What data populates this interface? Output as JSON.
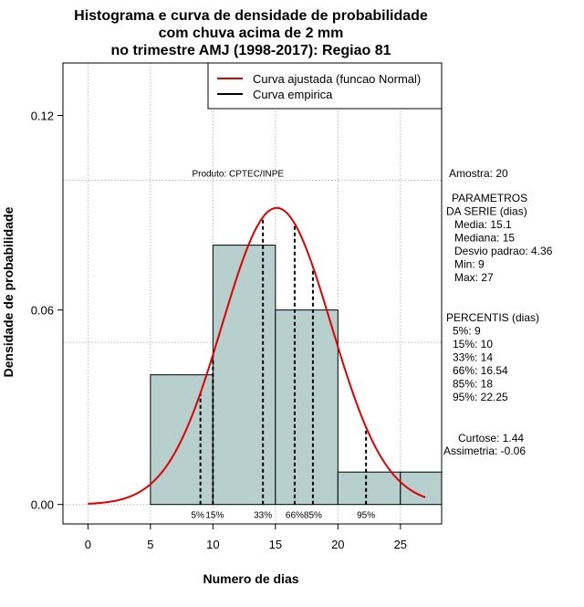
{
  "chart_data": {
    "type": "histogram",
    "title_lines": [
      "Histograma e curva de densidade de probabilidade",
      "com chuva acima de 2 mm",
      "no trimestre AMJ (1998-2017): Regiao 81"
    ],
    "xlabel": "Numero de dias",
    "ylabel": "Densidade de probabilidade",
    "xlim": [
      -2,
      28.3
    ],
    "ylim": [
      -0.006,
      0.1362
    ],
    "x_ticks": [
      "0",
      "5",
      "10",
      "15",
      "20",
      "25"
    ],
    "y_ticks": [
      "0.00",
      "0.06",
      "0.12"
    ],
    "x_tick_values": [
      0,
      5,
      10,
      15,
      20,
      25
    ],
    "y_tick_values": [
      0.0,
      0.06,
      0.12
    ],
    "grid_x": [
      0,
      5,
      10,
      15,
      20,
      25
    ],
    "grid_y": [
      0.0,
      0.05,
      0.1
    ],
    "bins": [
      {
        "start": 5,
        "end": 10,
        "density": 0.04
      },
      {
        "start": 10,
        "end": 15,
        "density": 0.08
      },
      {
        "start": 15,
        "end": 20,
        "density": 0.06
      },
      {
        "start": 20,
        "end": 25,
        "density": 0.01
      },
      {
        "start": 25,
        "end": 28.3,
        "density": 0.01
      }
    ],
    "bar_color": "#b7cfcd",
    "normal_curve": {
      "mean": 15.1,
      "sd": 4.36,
      "x_from": 0,
      "x_to": 27,
      "color": "#e00000"
    },
    "percentile_lines": [
      {
        "label": "5%",
        "x": 9
      },
      {
        "label": "15%",
        "x": 10
      },
      {
        "label": "33%",
        "x": 14
      },
      {
        "label": "66%",
        "x": 16.54
      },
      {
        "label": "85%",
        "x": 18
      },
      {
        "label": "95%",
        "x": 22.25
      }
    ],
    "legend": [
      {
        "label": "Curva ajustada (funcao Normal)",
        "color": "#e00000"
      },
      {
        "label": "Curva empirica",
        "color": "#000000"
      }
    ],
    "product_label": "Produto: CPTEC/INPE",
    "side_text": {
      "amostra": "Amostra: 20",
      "parametros_lines": [
        "PARAMETROS",
        "DA SERIE (dias)",
        "Media: 15.1",
        "Mediana: 15",
        "Desvio padrao: 4.36",
        "Min: 9",
        "Max: 27"
      ],
      "percentis_lines": [
        "PERCENTIS (dias)",
        "5%: 9",
        "15%: 10",
        "33%: 14",
        "66%: 16.54",
        "85%: 18",
        "95%: 22.25"
      ],
      "curtose": "Curtose: 1.44",
      "assimetria": "Assimetria: -0.06"
    }
  }
}
